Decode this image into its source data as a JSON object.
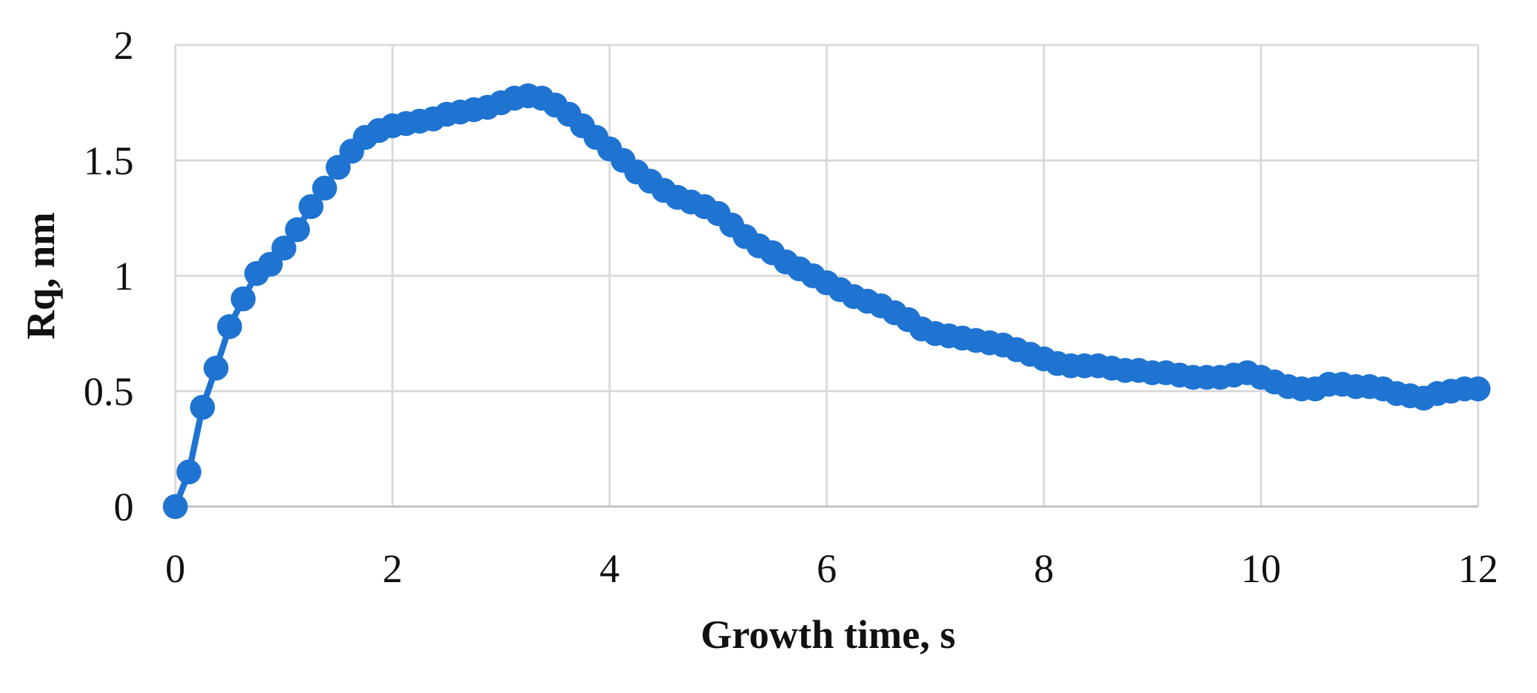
{
  "chart_data": {
    "type": "line",
    "title": "",
    "xlabel": "Growth time, s",
    "ylabel": "Rq, nm",
    "xlim": [
      0,
      12
    ],
    "ylim": [
      0,
      2
    ],
    "x_ticks": [
      "0",
      "2",
      "4",
      "6",
      "8",
      "10",
      "12"
    ],
    "y_ticks": [
      "0",
      "0.5",
      "1",
      "1.5",
      "2"
    ],
    "grid": true,
    "legend": "none",
    "marker": "circle",
    "color": "#1f74d1",
    "series": [
      {
        "x": [
          0,
          0.125,
          0.25,
          0.375,
          0.5,
          0.625,
          0.75,
          0.875,
          1.0,
          1.125,
          1.25,
          1.375,
          1.5,
          1.625,
          1.75,
          1.875,
          2.0,
          2.125,
          2.25,
          2.375,
          2.5,
          2.625,
          2.75,
          2.875,
          3.0,
          3.125,
          3.25,
          3.375,
          3.5,
          3.625,
          3.75,
          3.875,
          4.0,
          4.125,
          4.25,
          4.375,
          4.5,
          4.625,
          4.75,
          4.875,
          5.0,
          5.125,
          5.25,
          5.375,
          5.5,
          5.625,
          5.75,
          5.875,
          6.0,
          6.125,
          6.25,
          6.375,
          6.5,
          6.625,
          6.75,
          6.875,
          7.0,
          7.125,
          7.25,
          7.375,
          7.5,
          7.625,
          7.75,
          7.875,
          8.0,
          8.125,
          8.25,
          8.375,
          8.5,
          8.625,
          8.75,
          8.875,
          9.0,
          9.125,
          9.25,
          9.375,
          9.5,
          9.625,
          9.75,
          9.875,
          10.0,
          10.125,
          10.25,
          10.375,
          10.5,
          10.625,
          10.75,
          10.875,
          11.0,
          11.125,
          11.25,
          11.375,
          11.5,
          11.625,
          11.75,
          11.875,
          12.0
        ],
        "values": [
          0.0,
          0.15,
          0.43,
          0.6,
          0.78,
          0.9,
          1.01,
          1.05,
          1.12,
          1.2,
          1.3,
          1.38,
          1.47,
          1.54,
          1.6,
          1.63,
          1.65,
          1.66,
          1.67,
          1.68,
          1.7,
          1.71,
          1.72,
          1.73,
          1.75,
          1.77,
          1.78,
          1.77,
          1.74,
          1.7,
          1.65,
          1.6,
          1.55,
          1.5,
          1.45,
          1.41,
          1.37,
          1.34,
          1.32,
          1.3,
          1.27,
          1.22,
          1.17,
          1.13,
          1.1,
          1.06,
          1.03,
          1.0,
          0.97,
          0.94,
          0.91,
          0.89,
          0.87,
          0.84,
          0.81,
          0.77,
          0.75,
          0.74,
          0.73,
          0.72,
          0.71,
          0.7,
          0.68,
          0.66,
          0.64,
          0.62,
          0.61,
          0.61,
          0.61,
          0.6,
          0.59,
          0.59,
          0.58,
          0.58,
          0.57,
          0.56,
          0.56,
          0.56,
          0.57,
          0.58,
          0.56,
          0.54,
          0.52,
          0.51,
          0.51,
          0.53,
          0.53,
          0.52,
          0.52,
          0.51,
          0.49,
          0.48,
          0.47,
          0.49,
          0.5,
          0.51,
          0.51
        ]
      }
    ]
  }
}
